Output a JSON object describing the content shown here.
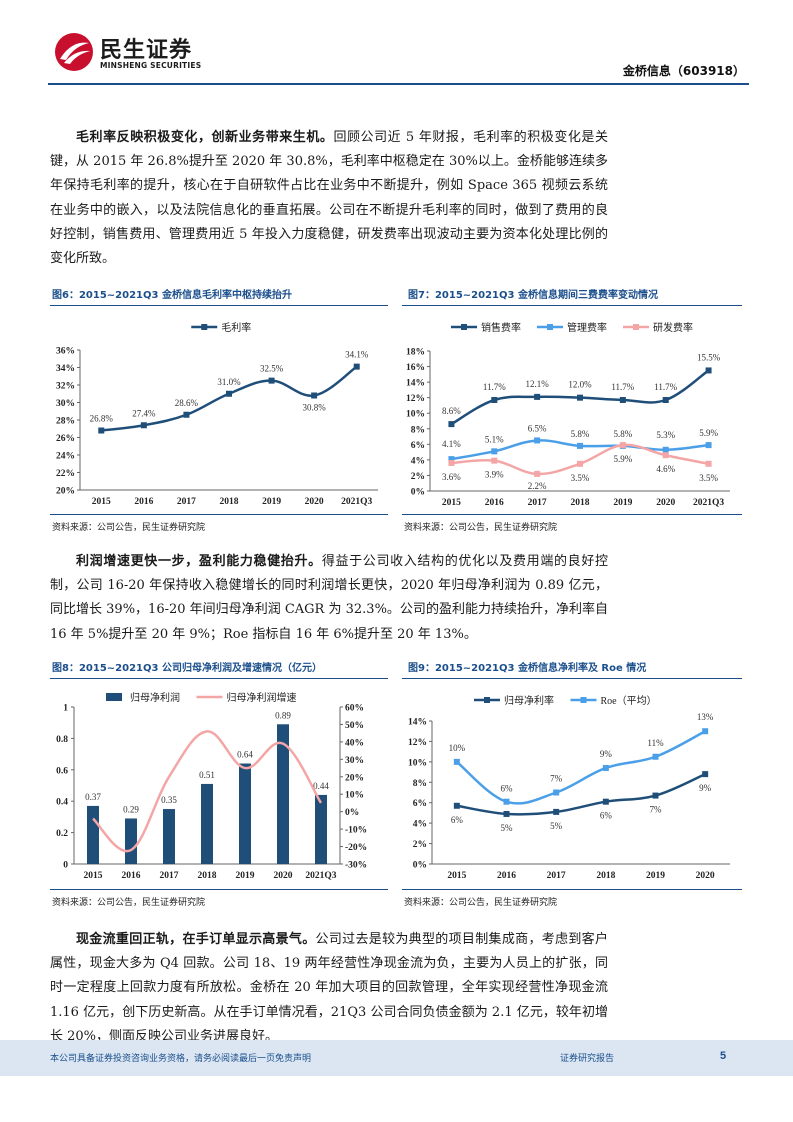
{
  "header": {
    "logo_cn": "民生证券",
    "logo_en": "MINSHENG SECURITIES",
    "company_tag": "金桥信息（603918）",
    "brand_color": "#c8102e",
    "accent_color": "#1b4f8c"
  },
  "para1": {
    "lead": "毛利率反映积极变化，创新业务带来生机。",
    "body": "回顾公司近 5 年财报，毛利率的积极变化是关键，从 2015 年 26.8%提升至 2020 年 30.8%，毛利率中枢稳定在 30%以上。金桥能够连续多年保持毛利率的提升，核心在于自研软件占比在业务中不断提升，例如 Space 365 视频云系统在业务中的嵌入，以及法院信息化的垂直拓展。公司在不断提升毛利率的同时，做到了费用的良好控制，销售费用、管理费用近 5 年投入力度稳健，研发费率出现波动主要为资本化处理比例的变化所致。"
  },
  "para2": {
    "lead": "利润增速更快一步，盈利能力稳健抬升。",
    "body": "得益于公司收入结构的优化以及费用端的良好控制，公司 16-20 年保持收入稳健增长的同时利润增长更快，2020 年归母净利润为 0.89 亿元，同比增长 39%，16-20 年间归母净利润 CAGR 为 32.3%。公司的盈利能力持续抬升，净利率自 16 年 5%提升至 20 年 9%；Roe 指标自 16 年 6%提升至 20 年 13%。"
  },
  "para3": {
    "lead": "现金流重回正轨，在手订单显示高景气。",
    "body": "公司过去是较为典型的项目制集成商，考虑到客户属性，现金大多为 Q4 回款。公司 18、19 两年经营性净现金流为负，主要为人员上的扩张，同时一定程度上回款力度有所放松。金桥在 20 年加大项目的回款管理，全年实现经营性净现金流 1.16 亿元，创下历史新高。从在手订单情况看，21Q3 公司合同负债金额为 2.1 亿元，较年初增长 20%，侧面反映公司业务进展良好。"
  },
  "figures": {
    "fig6": {
      "title": "图6：2015~2021Q3 金桥信息毛利率中枢持续抬升",
      "source": "资料来源：公司公告，民生证券研究院"
    },
    "fig7": {
      "title": "图7：2015~2021Q3 金桥信息期间三费费率变动情况",
      "source": "资料来源：公司公告，民生证券研究院"
    },
    "fig8": {
      "title": "图8：2015~2021Q3 公司归母净利润及增速情况（亿元）",
      "source": "资料来源：公司公告，民生证券研究院"
    },
    "fig9": {
      "title": "图9：2015~2021Q3 金桥信息净利率及 Roe 情况",
      "source": "资料来源：公司公告，民生证券研究院"
    }
  },
  "chart_data": [
    {
      "id": "fig6",
      "type": "line",
      "categories": [
        "2015",
        "2016",
        "2017",
        "2018",
        "2019",
        "2020",
        "2021Q3"
      ],
      "series": [
        {
          "name": "毛利率",
          "values": [
            26.8,
            27.4,
            28.6,
            31.0,
            32.5,
            30.8,
            34.1
          ],
          "labels": [
            "26.8%",
            "27.4%",
            "28.6%",
            "31.0%",
            "32.5%",
            "30.8%",
            "34.1%"
          ],
          "color": "#1f4e79"
        }
      ],
      "ylim": [
        20,
        36
      ],
      "yticks": [
        "20%",
        "22%",
        "24%",
        "26%",
        "28%",
        "30%",
        "32%",
        "34%",
        "36%"
      ],
      "legend": "top",
      "grid": false
    },
    {
      "id": "fig7",
      "type": "line",
      "categories": [
        "2015",
        "2016",
        "2017",
        "2018",
        "2019",
        "2020",
        "2021Q3"
      ],
      "series": [
        {
          "name": "销售费率",
          "values": [
            8.6,
            11.7,
            12.1,
            12.0,
            11.7,
            11.7,
            15.5
          ],
          "labels": [
            "8.6%",
            "11.7%",
            "12.1%",
            "12.0%",
            "11.7%",
            "11.7%",
            "15.5%"
          ],
          "color": "#1f4e79"
        },
        {
          "name": "管理费率",
          "values": [
            4.1,
            5.1,
            6.5,
            5.8,
            5.8,
            5.3,
            5.9
          ],
          "labels": [
            "4.1%",
            "5.1%",
            "6.5%",
            "5.8%",
            "5.8%",
            "5.3%",
            "5.9%"
          ],
          "color": "#4a9fe8"
        },
        {
          "name": "研发费率",
          "values": [
            3.6,
            3.9,
            2.2,
            3.5,
            5.9,
            4.6,
            3.5
          ],
          "labels": [
            "3.6%",
            "3.9%",
            "2.2%",
            "3.5%",
            "5.9%",
            "4.6%",
            "3.5%"
          ],
          "color": "#f4a6a6"
        }
      ],
      "ylim": [
        0,
        18
      ],
      "yticks": [
        "0%",
        "2%",
        "4%",
        "6%",
        "8%",
        "10%",
        "12%",
        "14%",
        "16%",
        "18%"
      ],
      "legend": "top",
      "grid": false
    },
    {
      "id": "fig8",
      "type": "bar",
      "categories": [
        "2015",
        "2016",
        "2017",
        "2018",
        "2019",
        "2020",
        "2021Q3"
      ],
      "series": [
        {
          "name": "归母净利润",
          "kind": "bar",
          "axis": "left",
          "values": [
            0.37,
            0.29,
            0.35,
            0.51,
            0.64,
            0.89,
            0.44
          ],
          "labels": [
            "0.37",
            "0.29",
            "0.35",
            "0.51",
            "0.64",
            "0.89",
            "0.44"
          ],
          "color": "#1f4e79"
        },
        {
          "name": "归母净利润增速",
          "kind": "line",
          "axis": "right",
          "values": [
            -4,
            -22,
            20,
            46,
            25,
            39,
            5
          ],
          "color": "#f4a6a6"
        }
      ],
      "ylim": [
        0,
        1
      ],
      "yticks": [
        "0",
        "0.2",
        "0.4",
        "0.6",
        "0.8",
        "1"
      ],
      "y2lim": [
        -30,
        60
      ],
      "y2ticks": [
        "-30%",
        "-20%",
        "-10%",
        "0%",
        "10%",
        "20%",
        "30%",
        "40%",
        "50%",
        "60%"
      ],
      "legend": "top",
      "grid": false
    },
    {
      "id": "fig9",
      "type": "line",
      "categories": [
        "2015",
        "2016",
        "2017",
        "2018",
        "2019",
        "2020"
      ],
      "series": [
        {
          "name": "归母净利率",
          "values": [
            5.7,
            4.9,
            5.1,
            6.1,
            6.7,
            8.8
          ],
          "labels": [
            "6%",
            "5%",
            "5%",
            "6%",
            "7%",
            "9%"
          ],
          "color": "#1f4e79"
        },
        {
          "name": "Roe（平均）",
          "values": [
            10.0,
            6.1,
            7.0,
            9.4,
            10.5,
            13.0
          ],
          "labels": [
            "10%",
            "6%",
            "7%",
            "9%",
            "11%",
            "13%"
          ],
          "color": "#4a9fe8"
        }
      ],
      "ylim": [
        0,
        14
      ],
      "yticks": [
        "0%",
        "2%",
        "4%",
        "6%",
        "8%",
        "10%",
        "12%",
        "14%"
      ],
      "legend": "top",
      "grid": false
    }
  ],
  "footer": {
    "disclaimer": "本公司具备证券投资咨询业务资格，请务必阅读最后一页免责声明",
    "report_type": "证券研究报告",
    "page": "5"
  }
}
